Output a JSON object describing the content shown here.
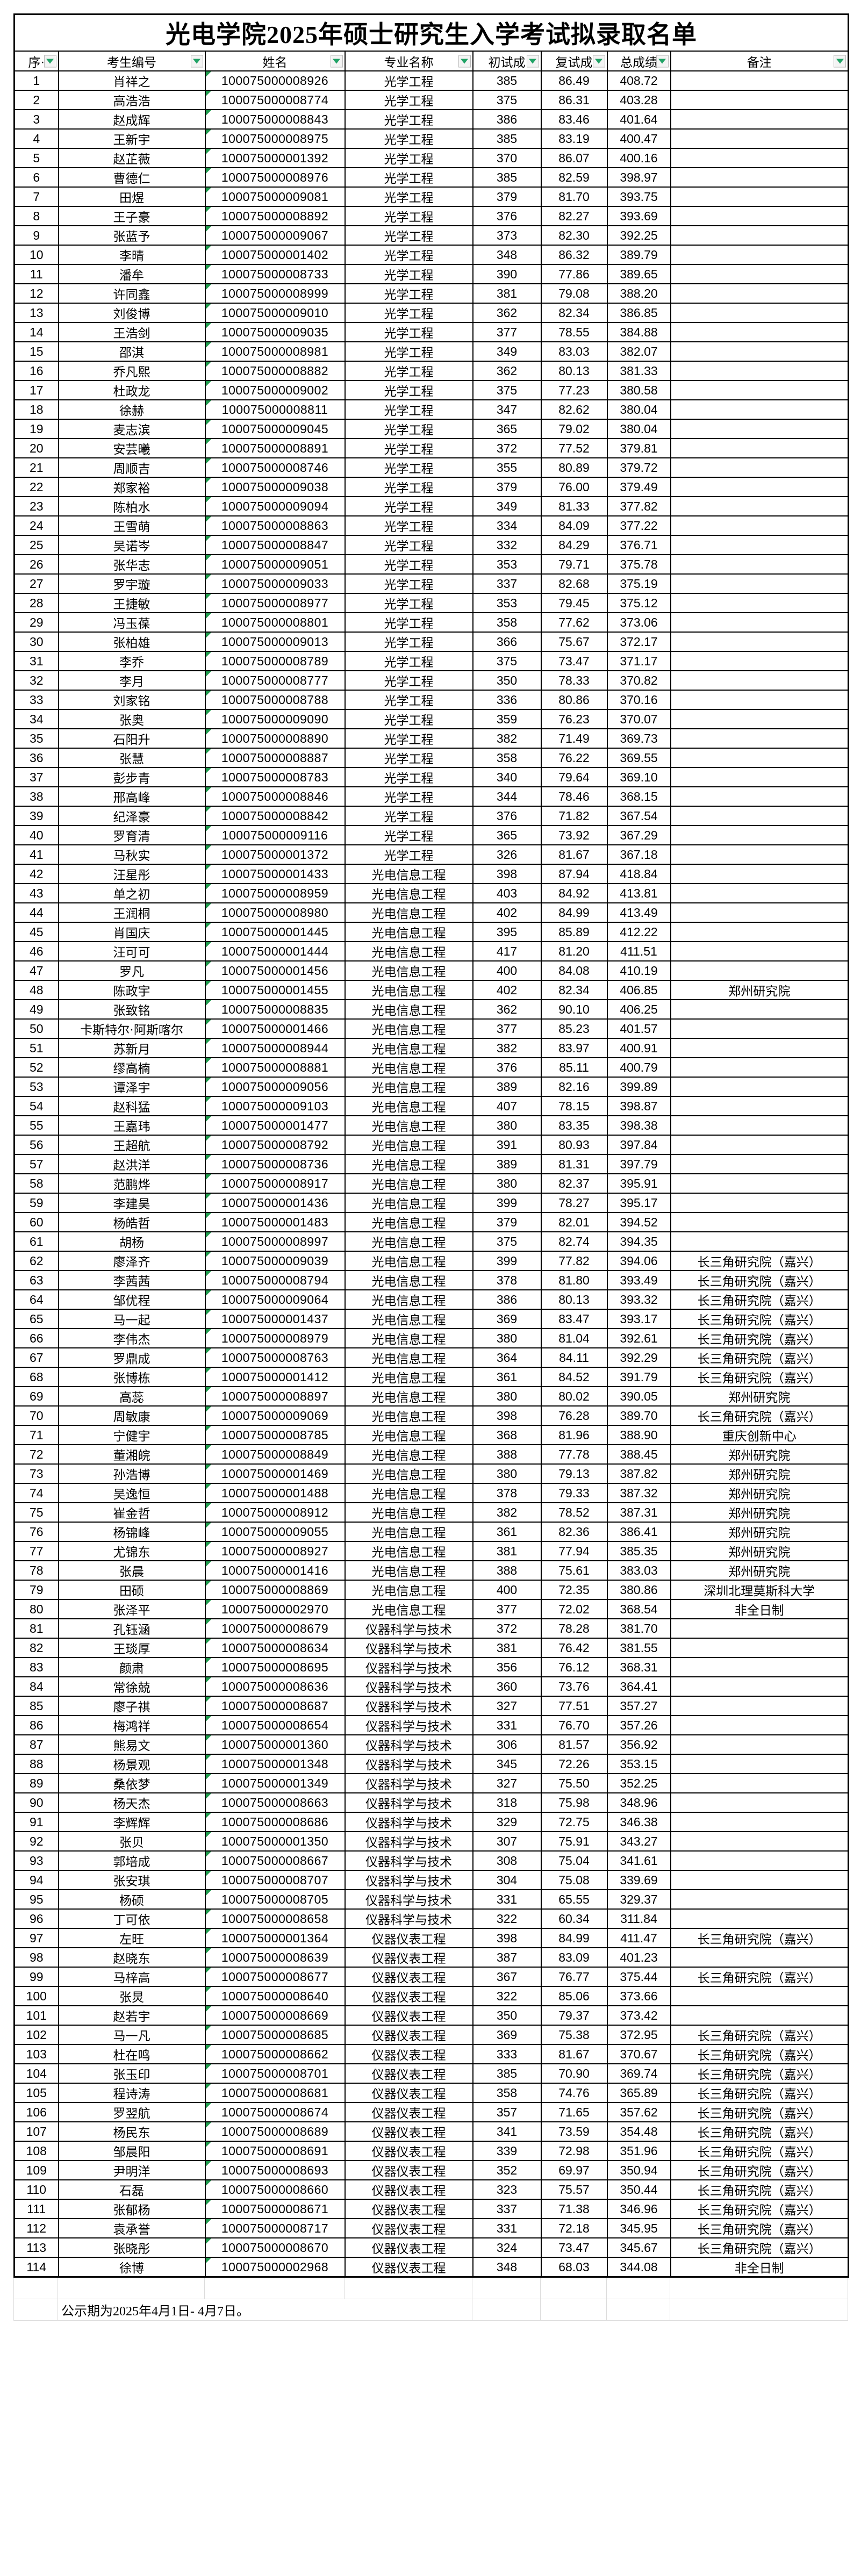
{
  "title": "光电学院2025年硕士研究生入学考试拟录取名单",
  "footer": {
    "note": "公示期为2025年4月1日- 4月7日。"
  },
  "colors": {
    "grid": "#000000",
    "faint_grid": "#dcdcdc",
    "filter_triangle_green": "#21a366",
    "corner_triangle_green": "#1f9c4d",
    "background": "#ffffff"
  },
  "table": {
    "columns": [
      "序·",
      "考生编号",
      "姓名",
      "专业名称",
      "初试成",
      "复试成",
      "总成绩",
      "备注"
    ],
    "rows": [
      [
        "1",
        "肖祥之",
        "100075000008926",
        "光学工程",
        "385",
        "86.49",
        "408.72",
        ""
      ],
      [
        "2",
        "高浩浩",
        "100075000008774",
        "光学工程",
        "375",
        "86.31",
        "403.28",
        ""
      ],
      [
        "3",
        "赵成辉",
        "100075000008843",
        "光学工程",
        "386",
        "83.46",
        "401.64",
        ""
      ],
      [
        "4",
        "王新宇",
        "100075000008975",
        "光学工程",
        "385",
        "83.19",
        "400.47",
        ""
      ],
      [
        "5",
        "赵芷薇",
        "100075000001392",
        "光学工程",
        "370",
        "86.07",
        "400.16",
        ""
      ],
      [
        "6",
        "曹德仁",
        "100075000008976",
        "光学工程",
        "385",
        "82.59",
        "398.97",
        ""
      ],
      [
        "7",
        "田煜",
        "100075000009081",
        "光学工程",
        "379",
        "81.70",
        "393.75",
        ""
      ],
      [
        "8",
        "王子豪",
        "100075000008892",
        "光学工程",
        "376",
        "82.27",
        "393.69",
        ""
      ],
      [
        "9",
        "张蓝予",
        "100075000009067",
        "光学工程",
        "373",
        "82.30",
        "392.25",
        ""
      ],
      [
        "10",
        "李晴",
        "100075000001402",
        "光学工程",
        "348",
        "86.32",
        "389.79",
        ""
      ],
      [
        "11",
        "潘牟",
        "100075000008733",
        "光学工程",
        "390",
        "77.86",
        "389.65",
        ""
      ],
      [
        "12",
        "许同鑫",
        "100075000008999",
        "光学工程",
        "381",
        "79.08",
        "388.20",
        ""
      ],
      [
        "13",
        "刘俊博",
        "100075000009010",
        "光学工程",
        "362",
        "82.34",
        "386.85",
        ""
      ],
      [
        "14",
        "王浩剑",
        "100075000009035",
        "光学工程",
        "377",
        "78.55",
        "384.88",
        ""
      ],
      [
        "15",
        "邵淇",
        "100075000008981",
        "光学工程",
        "349",
        "83.03",
        "382.07",
        ""
      ],
      [
        "16",
        "乔凡熙",
        "100075000008882",
        "光学工程",
        "362",
        "80.13",
        "381.33",
        ""
      ],
      [
        "17",
        "杜政龙",
        "100075000009002",
        "光学工程",
        "375",
        "77.23",
        "380.58",
        ""
      ],
      [
        "18",
        "徐赫",
        "100075000008811",
        "光学工程",
        "347",
        "82.62",
        "380.04",
        ""
      ],
      [
        "19",
        "麦志滨",
        "100075000009045",
        "光学工程",
        "365",
        "79.02",
        "380.04",
        ""
      ],
      [
        "20",
        "安芸曦",
        "100075000008891",
        "光学工程",
        "372",
        "77.52",
        "379.81",
        ""
      ],
      [
        "21",
        "周顺吉",
        "100075000008746",
        "光学工程",
        "355",
        "80.89",
        "379.72",
        ""
      ],
      [
        "22",
        "郑家裕",
        "100075000009038",
        "光学工程",
        "379",
        "76.00",
        "379.49",
        ""
      ],
      [
        "23",
        "陈柏水",
        "100075000009094",
        "光学工程",
        "349",
        "81.33",
        "377.82",
        ""
      ],
      [
        "24",
        "王雪萌",
        "100075000008863",
        "光学工程",
        "334",
        "84.09",
        "377.22",
        ""
      ],
      [
        "25",
        "吴诺岑",
        "100075000008847",
        "光学工程",
        "332",
        "84.29",
        "376.71",
        ""
      ],
      [
        "26",
        "张华志",
        "100075000009051",
        "光学工程",
        "353",
        "79.71",
        "375.78",
        ""
      ],
      [
        "27",
        "罗宇璇",
        "100075000009033",
        "光学工程",
        "337",
        "82.68",
        "375.19",
        ""
      ],
      [
        "28",
        "王捷敏",
        "100075000008977",
        "光学工程",
        "353",
        "79.45",
        "375.12",
        ""
      ],
      [
        "29",
        "冯玉葆",
        "100075000008801",
        "光学工程",
        "358",
        "77.62",
        "373.06",
        ""
      ],
      [
        "30",
        "张柏雄",
        "100075000009013",
        "光学工程",
        "366",
        "75.67",
        "372.17",
        ""
      ],
      [
        "31",
        "李乔",
        "100075000008789",
        "光学工程",
        "375",
        "73.47",
        "371.17",
        ""
      ],
      [
        "32",
        "李月",
        "100075000008777",
        "光学工程",
        "350",
        "78.33",
        "370.82",
        ""
      ],
      [
        "33",
        "刘家铭",
        "100075000008788",
        "光学工程",
        "336",
        "80.86",
        "370.16",
        ""
      ],
      [
        "34",
        "张奥",
        "100075000009090",
        "光学工程",
        "359",
        "76.23",
        "370.07",
        ""
      ],
      [
        "35",
        "石阳升",
        "100075000008890",
        "光学工程",
        "382",
        "71.49",
        "369.73",
        ""
      ],
      [
        "36",
        "张慧",
        "100075000008887",
        "光学工程",
        "358",
        "76.22",
        "369.55",
        ""
      ],
      [
        "37",
        "彭步青",
        "100075000008783",
        "光学工程",
        "340",
        "79.64",
        "369.10",
        ""
      ],
      [
        "38",
        "邢高峰",
        "100075000008846",
        "光学工程",
        "344",
        "78.46",
        "368.15",
        ""
      ],
      [
        "39",
        "纪泽豪",
        "100075000008842",
        "光学工程",
        "376",
        "71.82",
        "367.54",
        ""
      ],
      [
        "40",
        "罗育清",
        "100075000009116",
        "光学工程",
        "365",
        "73.92",
        "367.29",
        ""
      ],
      [
        "41",
        "马秋实",
        "100075000001372",
        "光学工程",
        "326",
        "81.67",
        "367.18",
        ""
      ],
      [
        "42",
        "汪星彤",
        "100075000001433",
        "光电信息工程",
        "398",
        "87.94",
        "418.84",
        ""
      ],
      [
        "43",
        "单之初",
        "100075000008959",
        "光电信息工程",
        "403",
        "84.92",
        "413.81",
        ""
      ],
      [
        "44",
        "王润桐",
        "100075000008980",
        "光电信息工程",
        "402",
        "84.99",
        "413.49",
        ""
      ],
      [
        "45",
        "肖国庆",
        "100075000001445",
        "光电信息工程",
        "395",
        "85.89",
        "412.22",
        ""
      ],
      [
        "46",
        "汪可可",
        "100075000001444",
        "光电信息工程",
        "417",
        "81.20",
        "411.51",
        ""
      ],
      [
        "47",
        "罗凡",
        "100075000001456",
        "光电信息工程",
        "400",
        "84.08",
        "410.19",
        ""
      ],
      [
        "48",
        "陈政宇",
        "100075000001455",
        "光电信息工程",
        "402",
        "82.34",
        "406.85",
        "郑州研究院"
      ],
      [
        "49",
        "张致铭",
        "100075000008835",
        "光电信息工程",
        "362",
        "90.10",
        "406.25",
        ""
      ],
      [
        "50",
        "卡斯特尔·阿斯喀尔",
        "100075000001466",
        "光电信息工程",
        "377",
        "85.23",
        "401.57",
        ""
      ],
      [
        "51",
        "苏新月",
        "100075000008944",
        "光电信息工程",
        "382",
        "83.97",
        "400.91",
        ""
      ],
      [
        "52",
        "缪高楠",
        "100075000008881",
        "光电信息工程",
        "376",
        "85.11",
        "400.79",
        ""
      ],
      [
        "53",
        "谭泽宇",
        "100075000009056",
        "光电信息工程",
        "389",
        "82.16",
        "399.89",
        ""
      ],
      [
        "54",
        "赵科猛",
        "100075000009103",
        "光电信息工程",
        "407",
        "78.15",
        "398.87",
        ""
      ],
      [
        "55",
        "王嘉玮",
        "100075000001477",
        "光电信息工程",
        "380",
        "83.35",
        "398.38",
        ""
      ],
      [
        "56",
        "王超航",
        "100075000008792",
        "光电信息工程",
        "391",
        "80.93",
        "397.84",
        ""
      ],
      [
        "57",
        "赵洪洋",
        "100075000008736",
        "光电信息工程",
        "389",
        "81.31",
        "397.79",
        ""
      ],
      [
        "58",
        "范鹏烨",
        "100075000008917",
        "光电信息工程",
        "380",
        "82.37",
        "395.91",
        ""
      ],
      [
        "59",
        "李建昊",
        "100075000001436",
        "光电信息工程",
        "399",
        "78.27",
        "395.17",
        ""
      ],
      [
        "60",
        "杨皓哲",
        "100075000001483",
        "光电信息工程",
        "379",
        "82.01",
        "394.52",
        ""
      ],
      [
        "61",
        "胡杨",
        "100075000008997",
        "光电信息工程",
        "375",
        "82.74",
        "394.35",
        ""
      ],
      [
        "62",
        "廖泽齐",
        "100075000009039",
        "光电信息工程",
        "399",
        "77.82",
        "394.06",
        "长三角研究院（嘉兴）"
      ],
      [
        "63",
        "李茜茜",
        "100075000008794",
        "光电信息工程",
        "378",
        "81.80",
        "393.49",
        "长三角研究院（嘉兴）"
      ],
      [
        "64",
        "邹优程",
        "100075000009064",
        "光电信息工程",
        "386",
        "80.13",
        "393.32",
        "长三角研究院（嘉兴）"
      ],
      [
        "65",
        "马一起",
        "100075000001437",
        "光电信息工程",
        "369",
        "83.47",
        "393.17",
        "长三角研究院（嘉兴）"
      ],
      [
        "66",
        "李伟杰",
        "100075000008979",
        "光电信息工程",
        "380",
        "81.04",
        "392.61",
        "长三角研究院（嘉兴）"
      ],
      [
        "67",
        "罗鼎成",
        "100075000008763",
        "光电信息工程",
        "364",
        "84.11",
        "392.29",
        "长三角研究院（嘉兴）"
      ],
      [
        "68",
        "张博栋",
        "100075000001412",
        "光电信息工程",
        "361",
        "84.52",
        "391.79",
        "长三角研究院（嘉兴）"
      ],
      [
        "69",
        "高蕊",
        "100075000008897",
        "光电信息工程",
        "380",
        "80.02",
        "390.05",
        "郑州研究院"
      ],
      [
        "70",
        "周敏康",
        "100075000009069",
        "光电信息工程",
        "398",
        "76.28",
        "389.70",
        "长三角研究院（嘉兴）"
      ],
      [
        "71",
        "宁健宇",
        "100075000008785",
        "光电信息工程",
        "368",
        "81.96",
        "388.90",
        "重庆创新中心"
      ],
      [
        "72",
        "董湘皖",
        "100075000008849",
        "光电信息工程",
        "388",
        "77.78",
        "388.45",
        "郑州研究院"
      ],
      [
        "73",
        "孙浩博",
        "100075000001469",
        "光电信息工程",
        "380",
        "79.13",
        "387.82",
        "郑州研究院"
      ],
      [
        "74",
        "吴逸恒",
        "100075000001488",
        "光电信息工程",
        "378",
        "79.33",
        "387.32",
        "郑州研究院"
      ],
      [
        "75",
        "崔金哲",
        "100075000008912",
        "光电信息工程",
        "382",
        "78.52",
        "387.31",
        "郑州研究院"
      ],
      [
        "76",
        "杨锦峰",
        "100075000009055",
        "光电信息工程",
        "361",
        "82.36",
        "386.41",
        "郑州研究院"
      ],
      [
        "77",
        "尤锦东",
        "100075000008927",
        "光电信息工程",
        "381",
        "77.94",
        "385.35",
        "郑州研究院"
      ],
      [
        "78",
        "张晨",
        "100075000001416",
        "光电信息工程",
        "388",
        "75.61",
        "383.03",
        "郑州研究院"
      ],
      [
        "79",
        "田硕",
        "100075000008869",
        "光电信息工程",
        "400",
        "72.35",
        "380.86",
        "深圳北理莫斯科大学"
      ],
      [
        "80",
        "张泽平",
        "100075000002970",
        "光电信息工程",
        "377",
        "72.02",
        "368.54",
        "非全日制"
      ],
      [
        "81",
        "孔钰涵",
        "100075000008679",
        "仪器科学与技术",
        "372",
        "78.28",
        "381.70",
        ""
      ],
      [
        "82",
        "王琰厚",
        "100075000008634",
        "仪器科学与技术",
        "381",
        "76.42",
        "381.55",
        ""
      ],
      [
        "83",
        "颜肃",
        "100075000008695",
        "仪器科学与技术",
        "356",
        "76.12",
        "368.31",
        ""
      ],
      [
        "84",
        "常徐兢",
        "100075000008636",
        "仪器科学与技术",
        "360",
        "73.76",
        "364.41",
        ""
      ],
      [
        "85",
        "廖子祺",
        "100075000008687",
        "仪器科学与技术",
        "327",
        "77.51",
        "357.27",
        ""
      ],
      [
        "86",
        "梅鸿祥",
        "100075000008654",
        "仪器科学与技术",
        "331",
        "76.70",
        "357.26",
        ""
      ],
      [
        "87",
        "熊易文",
        "100075000001360",
        "仪器科学与技术",
        "306",
        "81.57",
        "356.92",
        ""
      ],
      [
        "88",
        "杨景观",
        "100075000001348",
        "仪器科学与技术",
        "345",
        "72.26",
        "353.15",
        ""
      ],
      [
        "89",
        "桑依梦",
        "100075000001349",
        "仪器科学与技术",
        "327",
        "75.50",
        "352.25",
        ""
      ],
      [
        "90",
        "杨天杰",
        "100075000008663",
        "仪器科学与技术",
        "318",
        "75.98",
        "348.96",
        ""
      ],
      [
        "91",
        "李辉辉",
        "100075000008686",
        "仪器科学与技术",
        "329",
        "72.75",
        "346.38",
        ""
      ],
      [
        "92",
        "张贝",
        "100075000001350",
        "仪器科学与技术",
        "307",
        "75.91",
        "343.27",
        ""
      ],
      [
        "93",
        "郭培成",
        "100075000008667",
        "仪器科学与技术",
        "308",
        "75.04",
        "341.61",
        ""
      ],
      [
        "94",
        "张安琪",
        "100075000008707",
        "仪器科学与技术",
        "304",
        "75.08",
        "339.69",
        ""
      ],
      [
        "95",
        "杨硕",
        "100075000008705",
        "仪器科学与技术",
        "331",
        "65.55",
        "329.37",
        ""
      ],
      [
        "96",
        "丁可依",
        "100075000008658",
        "仪器科学与技术",
        "322",
        "60.34",
        "311.84",
        ""
      ],
      [
        "97",
        "左旺",
        "100075000001364",
        "仪器仪表工程",
        "398",
        "84.99",
        "411.47",
        "长三角研究院（嘉兴）"
      ],
      [
        "98",
        "赵晓东",
        "100075000008639",
        "仪器仪表工程",
        "387",
        "83.09",
        "401.23",
        ""
      ],
      [
        "99",
        "马梓高",
        "100075000008677",
        "仪器仪表工程",
        "367",
        "76.77",
        "375.44",
        "长三角研究院（嘉兴）"
      ],
      [
        "100",
        "张炅",
        "100075000008640",
        "仪器仪表工程",
        "322",
        "85.06",
        "373.66",
        ""
      ],
      [
        "101",
        "赵若宇",
        "100075000008669",
        "仪器仪表工程",
        "350",
        "79.37",
        "373.42",
        ""
      ],
      [
        "102",
        "马一凡",
        "100075000008685",
        "仪器仪表工程",
        "369",
        "75.38",
        "372.95",
        "长三角研究院（嘉兴）"
      ],
      [
        "103",
        "杜在鸣",
        "100075000008662",
        "仪器仪表工程",
        "333",
        "81.67",
        "370.67",
        "长三角研究院（嘉兴）"
      ],
      [
        "104",
        "张玉印",
        "100075000008701",
        "仪器仪表工程",
        "385",
        "70.90",
        "369.74",
        "长三角研究院（嘉兴）"
      ],
      [
        "105",
        "程诗涛",
        "100075000008681",
        "仪器仪表工程",
        "358",
        "74.76",
        "365.89",
        "长三角研究院（嘉兴）"
      ],
      [
        "106",
        "罗翌航",
        "100075000008674",
        "仪器仪表工程",
        "357",
        "71.65",
        "357.62",
        "长三角研究院（嘉兴）"
      ],
      [
        "107",
        "杨民东",
        "100075000008689",
        "仪器仪表工程",
        "341",
        "73.59",
        "354.48",
        "长三角研究院（嘉兴）"
      ],
      [
        "108",
        "邹晨阳",
        "100075000008691",
        "仪器仪表工程",
        "339",
        "72.98",
        "351.96",
        "长三角研究院（嘉兴）"
      ],
      [
        "109",
        "尹明洋",
        "100075000008693",
        "仪器仪表工程",
        "352",
        "69.97",
        "350.94",
        "长三角研究院（嘉兴）"
      ],
      [
        "110",
        "石磊",
        "100075000008660",
        "仪器仪表工程",
        "323",
        "75.57",
        "350.44",
        "长三角研究院（嘉兴）"
      ],
      [
        "111",
        "张郁杨",
        "100075000008671",
        "仪器仪表工程",
        "337",
        "71.38",
        "346.96",
        "长三角研究院（嘉兴）"
      ],
      [
        "112",
        "袁承誉",
        "100075000008717",
        "仪器仪表工程",
        "331",
        "72.18",
        "345.95",
        "长三角研究院（嘉兴）"
      ],
      [
        "113",
        "张晓彤",
        "100075000008670",
        "仪器仪表工程",
        "324",
        "73.47",
        "345.67",
        "长三角研究院（嘉兴）"
      ],
      [
        "114",
        "徐博",
        "100075000002968",
        "仪器仪表工程",
        "348",
        "68.03",
        "344.08",
        "非全日制"
      ]
    ]
  }
}
